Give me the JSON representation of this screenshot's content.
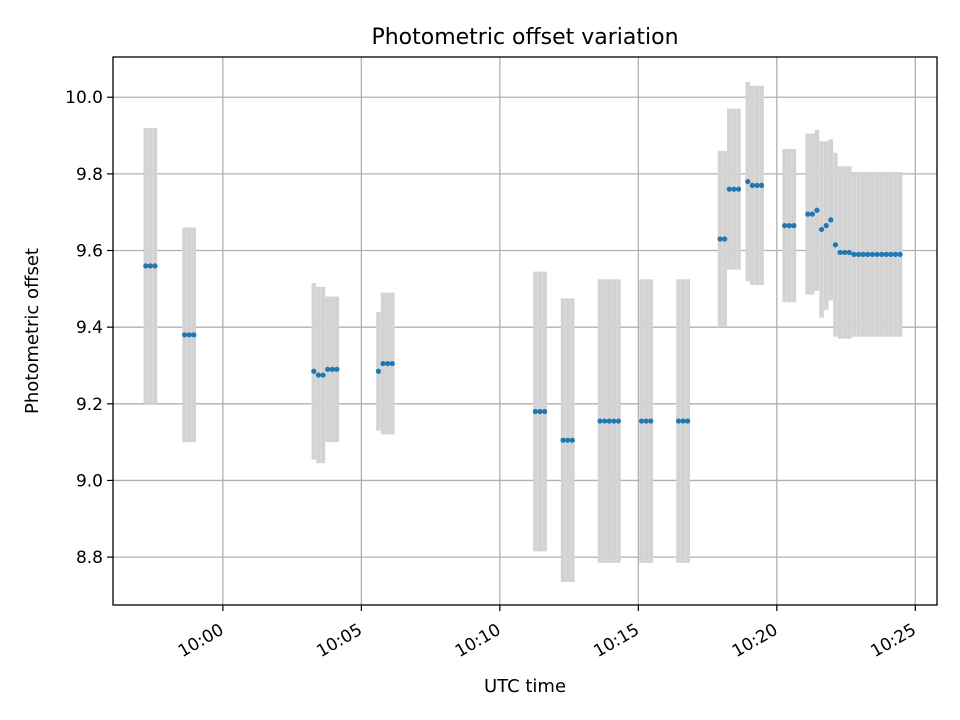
{
  "chart_data": {
    "type": "scatter",
    "title": "Photometric offset variation",
    "xlabel": "UTC time",
    "ylabel": "Photometric offset",
    "x_ticks": [
      "10:00",
      "10:05",
      "10:10",
      "10:15",
      "10:20",
      "10:25"
    ],
    "y_ticks": [
      "8.8",
      "9.0",
      "9.2",
      "9.4",
      "9.6",
      "9.8",
      "10.0"
    ],
    "xlim": [
      "09:56:02",
      "10:25:47"
    ],
    "ylim": [
      8.675,
      10.105
    ],
    "grid": true,
    "colors": {
      "points": "#1f77b4",
      "errorbars": "#d3d3d3",
      "grid": "#b0b0b0"
    },
    "series": [
      {
        "x": [
          "09:57:13",
          "09:57:23",
          "09:57:33",
          "09:58:37",
          "09:58:47",
          "09:58:57",
          "10:03:17",
          "10:03:27",
          "10:03:37",
          "10:03:47",
          "10:03:57",
          "10:04:07",
          "10:05:37",
          "10:05:47",
          "10:05:57",
          "10:06:07",
          "10:11:17",
          "10:11:27",
          "10:11:37",
          "10:12:17",
          "10:12:27",
          "10:12:37",
          "10:13:37",
          "10:13:47",
          "10:13:57",
          "10:14:07",
          "10:14:17",
          "10:15:07",
          "10:15:17",
          "10:15:27",
          "10:16:27",
          "10:16:37",
          "10:16:47",
          "10:17:57",
          "10:18:07",
          "10:18:17",
          "10:18:27",
          "10:18:37",
          "10:18:57",
          "10:19:07",
          "10:19:17",
          "10:19:27",
          "10:20:17",
          "10:20:27",
          "10:20:37",
          "10:21:07",
          "10:21:17",
          "10:21:27",
          "10:21:37",
          "10:21:47",
          "10:21:57",
          "10:22:07",
          "10:22:17",
          "10:22:27",
          "10:22:37",
          "10:22:47",
          "10:22:57",
          "10:23:07",
          "10:23:17",
          "10:23:27",
          "10:23:37",
          "10:23:47",
          "10:23:57",
          "10:24:07",
          "10:24:17",
          "10:24:27"
        ],
        "y": [
          9.56,
          9.56,
          9.56,
          9.38,
          9.38,
          9.38,
          9.285,
          9.275,
          9.275,
          9.29,
          9.29,
          9.29,
          9.285,
          9.305,
          9.305,
          9.305,
          9.18,
          9.18,
          9.18,
          9.105,
          9.105,
          9.105,
          9.155,
          9.155,
          9.155,
          9.155,
          9.155,
          9.155,
          9.155,
          9.155,
          9.155,
          9.155,
          9.155,
          9.63,
          9.63,
          9.76,
          9.76,
          9.76,
          9.78,
          9.77,
          9.77,
          9.77,
          9.665,
          9.665,
          9.665,
          9.695,
          9.695,
          9.705,
          9.655,
          9.665,
          9.68,
          9.615,
          9.595,
          9.595,
          9.595,
          9.59,
          9.59,
          9.59,
          9.59,
          9.59,
          9.59,
          9.59,
          9.59,
          9.59,
          9.59,
          9.59
        ],
        "yerr": [
          0.36,
          0.36,
          0.36,
          0.28,
          0.28,
          0.28,
          0.23,
          0.23,
          0.23,
          0.19,
          0.19,
          0.19,
          0.155,
          0.185,
          0.185,
          0.185,
          0.365,
          0.365,
          0.365,
          0.37,
          0.37,
          0.37,
          0.37,
          0.37,
          0.37,
          0.37,
          0.37,
          0.37,
          0.37,
          0.37,
          0.37,
          0.37,
          0.37,
          0.23,
          0.23,
          0.21,
          0.21,
          0.21,
          0.26,
          0.26,
          0.26,
          0.26,
          0.2,
          0.2,
          0.2,
          0.21,
          0.21,
          0.21,
          0.23,
          0.22,
          0.21,
          0.24,
          0.225,
          0.225,
          0.225,
          0.215,
          0.215,
          0.215,
          0.215,
          0.215,
          0.215,
          0.215,
          0.215,
          0.215,
          0.215,
          0.215
        ]
      }
    ]
  }
}
